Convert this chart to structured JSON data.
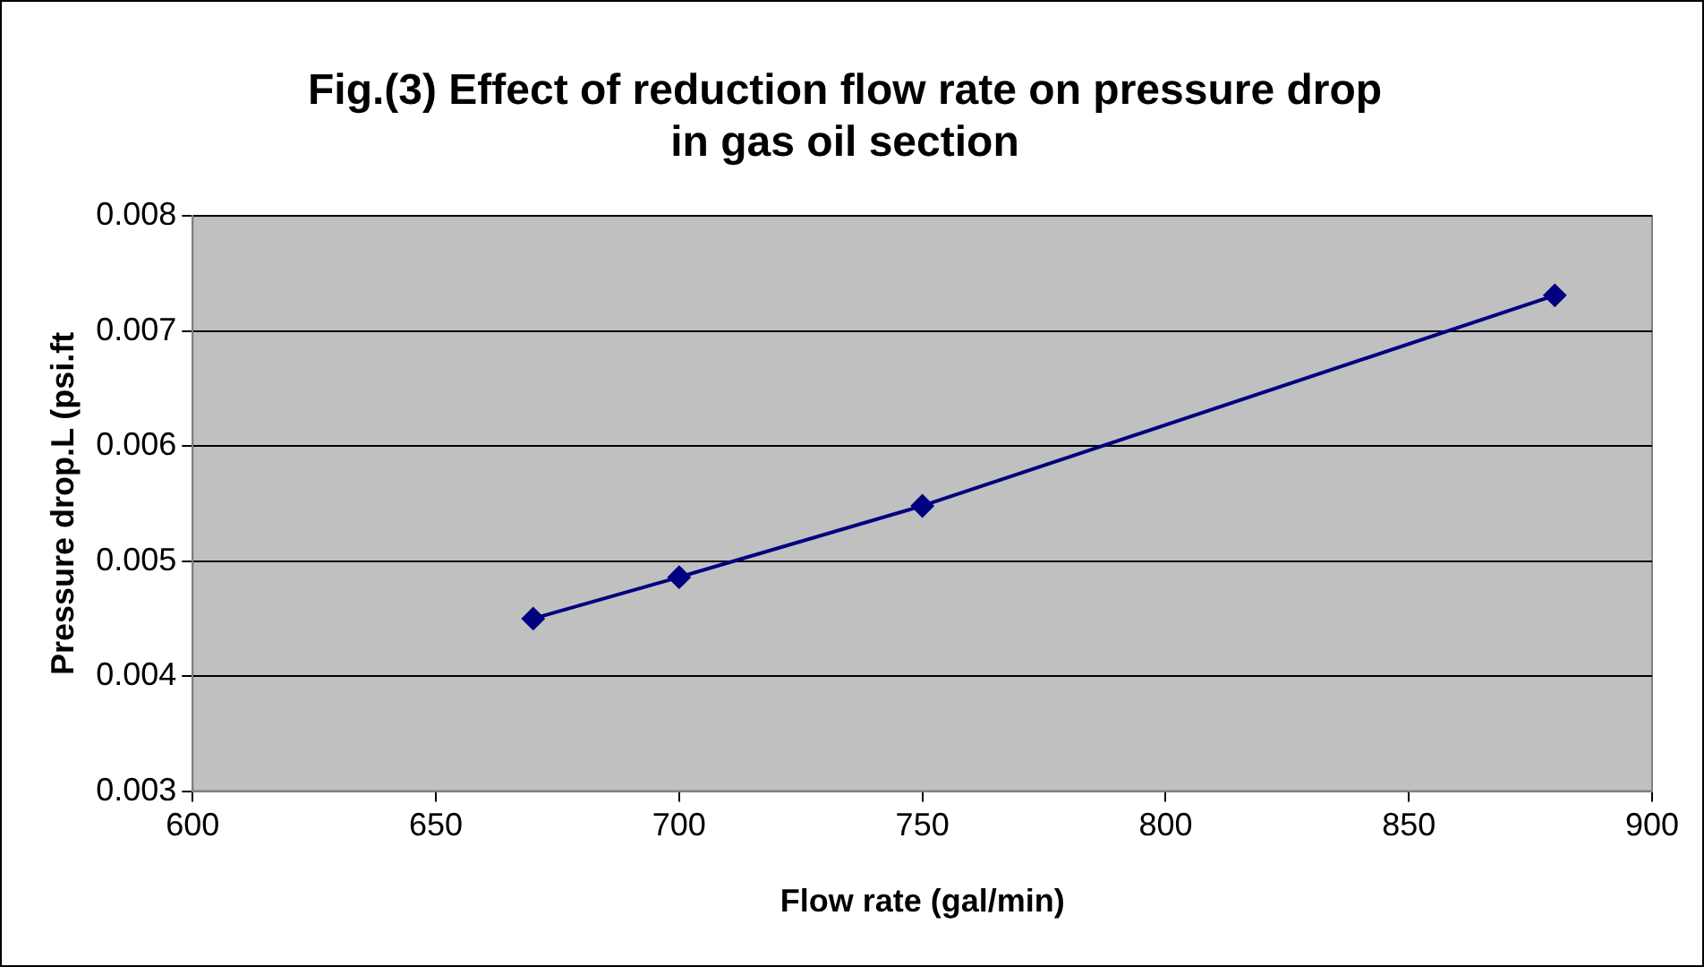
{
  "chart_data": {
    "type": "line",
    "title": "Fig.(3) Effect of reduction flow rate on pressure drop\nin gas oil section",
    "xlabel": "Flow rate (gal/min)",
    "ylabel": "Pressure drop.L (psi.ft",
    "x": [
      670,
      700,
      750,
      880
    ],
    "series": [
      {
        "color": "#000080",
        "values": [
          0.0045,
          0.00486,
          0.00548,
          0.00731
        ]
      }
    ],
    "xlim": [
      600,
      900
    ],
    "xticks": [
      600,
      650,
      700,
      750,
      800,
      850,
      900
    ],
    "ylim": [
      0.003,
      0.008
    ],
    "yticks": [
      0.003,
      0.004,
      0.005,
      0.006,
      0.007,
      0.008
    ],
    "grid": "y",
    "legend": false,
    "marker": "diamond",
    "line_style": "solid"
  }
}
